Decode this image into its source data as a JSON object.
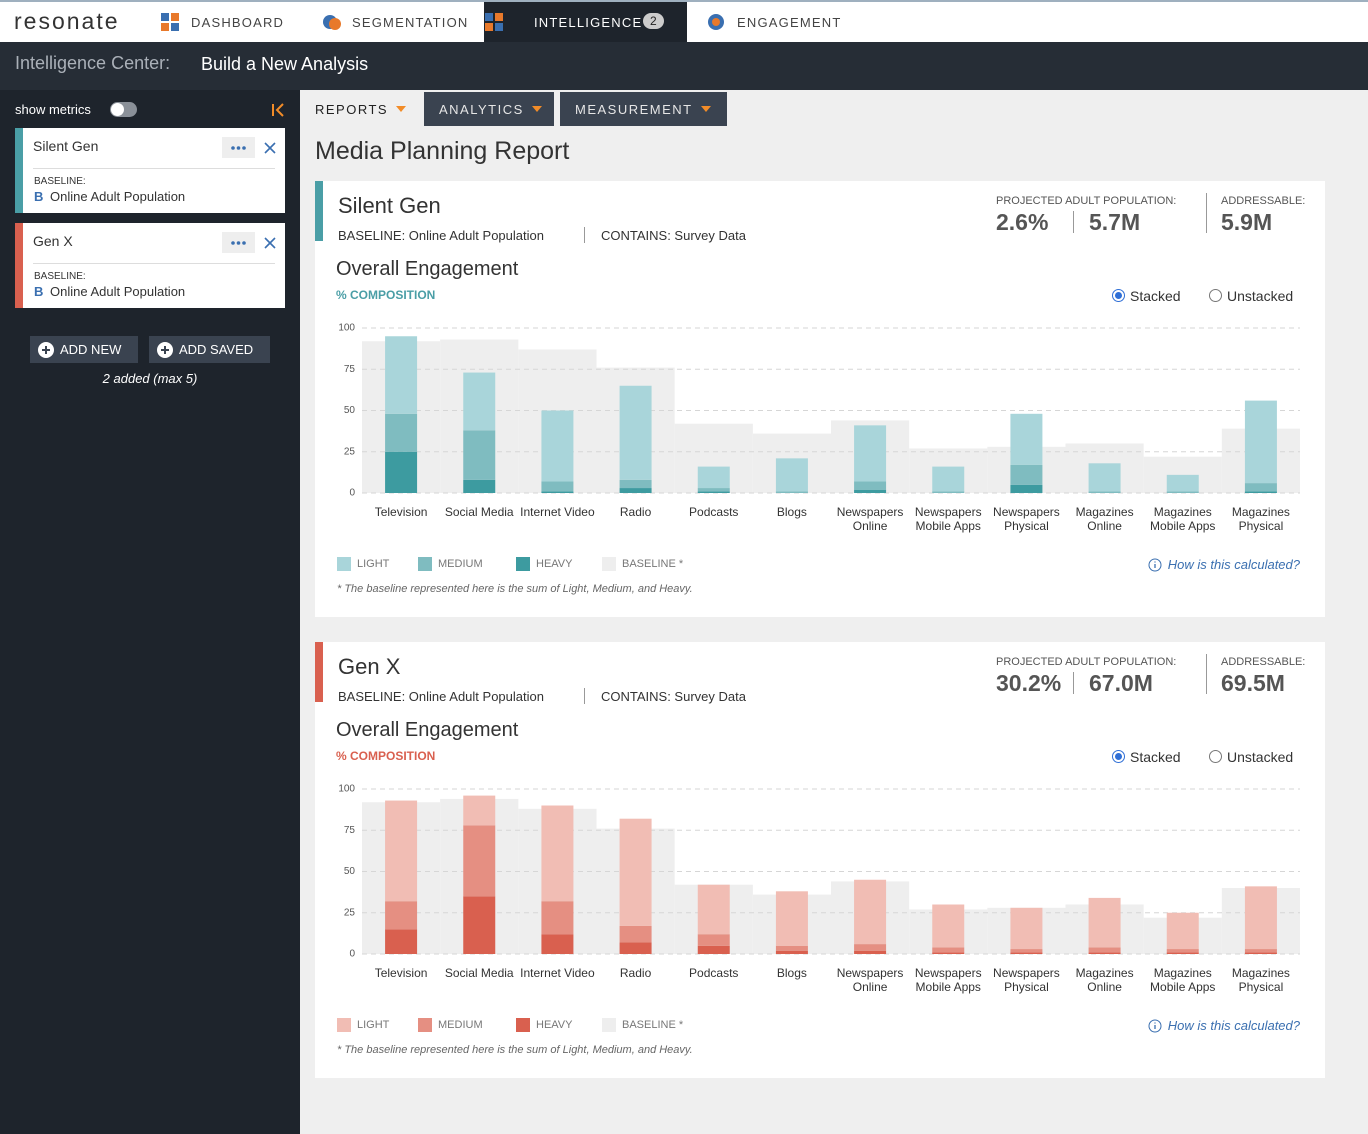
{
  "nav": {
    "logo": "resonate",
    "items": [
      "DASHBOARD",
      "SEGMENTATION",
      "INTELLIGENCE",
      "ENGAGEMENT"
    ],
    "active_index": 2,
    "badge": "2"
  },
  "header": {
    "label": "Intelligence Center:",
    "title": "Build a New Analysis"
  },
  "sidebar": {
    "toggle_label": "show metrics",
    "cards": [
      {
        "name": "Silent Gen",
        "baseline_label": "BASELINE:",
        "baseline_icon": "B",
        "baseline": "Online Adult Population",
        "color": "#4a9ea6"
      },
      {
        "name": "Gen X",
        "baseline_label": "BASELINE:",
        "baseline_icon": "B",
        "baseline": "Online Adult Population",
        "color": "#d9604f"
      }
    ],
    "buttons": [
      "ADD NEW",
      "ADD SAVED"
    ],
    "count_note": "2 added (max 5)"
  },
  "tabs": [
    "REPORTS",
    "ANALYTICS",
    "MEASUREMENT"
  ],
  "report_title": "Media Planning Report",
  "panels": [
    {
      "name": "Silent Gen",
      "baseline": "BASELINE: Online Adult Population",
      "contains": "CONTAINS: Survey Data",
      "pop_label": "PROJECTED ADULT POPULATION:",
      "pop_pct": "2.6%",
      "pop_count": "5.7M",
      "addr_label": "ADDRESSABLE:",
      "addr_value": "5.9M",
      "accent": "#4a9ea6"
    },
    {
      "name": "Gen X",
      "baseline": "BASELINE: Online Adult Population",
      "contains": "CONTAINS: Survey Data",
      "pop_label": "PROJECTED ADULT POPULATION:",
      "pop_pct": "30.2%",
      "pop_count": "67.0M",
      "addr_label": "ADDRESSABLE:",
      "addr_value": "69.5M",
      "accent": "#d9604f"
    }
  ],
  "chart_data": [
    {
      "type": "bar",
      "stacked": true,
      "title": "Overall Engagement",
      "subtitle": "% COMPOSITION",
      "view_options": [
        "Stacked",
        "Unstacked"
      ],
      "selected_view_index": 0,
      "categories": [
        "Television",
        "Social Media",
        "Internet Video",
        "Radio",
        "Podcasts",
        "Blogs",
        "Newspapers Online",
        "Newspapers Mobile Apps",
        "Newspapers Physical",
        "Magazines Online",
        "Magazines Mobile Apps",
        "Magazines Physical"
      ],
      "series": [
        {
          "name": "HEAVY",
          "color": "#3d9ba0",
          "values": [
            25,
            8,
            1,
            3,
            1,
            0,
            2,
            0,
            5,
            0,
            0,
            1
          ]
        },
        {
          "name": "MEDIUM",
          "color": "#7fbcc0",
          "values": [
            23,
            30,
            6,
            5,
            2,
            1,
            5,
            1,
            12,
            1,
            1,
            5
          ]
        },
        {
          "name": "LIGHT",
          "color": "#a9d5da",
          "values": [
            47,
            35,
            43,
            57,
            13,
            20,
            34,
            15,
            31,
            17,
            10,
            50
          ]
        }
      ],
      "baseline": {
        "name": "BASELINE *",
        "color": "#eeeeee",
        "values": [
          92,
          93,
          87,
          76,
          42,
          36,
          44,
          27,
          28,
          30,
          22,
          39
        ]
      },
      "legend_order": [
        2,
        1,
        0
      ],
      "ylim": [
        0,
        100
      ],
      "yticks": [
        0,
        25,
        50,
        75,
        100
      ],
      "grid": true,
      "help": "How is this calculated?",
      "footnote": "* The baseline represented here is the sum of Light, Medium, and Heavy."
    },
    {
      "type": "bar",
      "stacked": true,
      "title": "Overall Engagement",
      "subtitle": "% COMPOSITION",
      "view_options": [
        "Stacked",
        "Unstacked"
      ],
      "selected_view_index": 0,
      "categories": [
        "Television",
        "Social Media",
        "Internet Video",
        "Radio",
        "Podcasts",
        "Blogs",
        "Newspapers Online",
        "Newspapers Mobile Apps",
        "Newspapers Physical",
        "Magazines Online",
        "Magazines Mobile Apps",
        "Magazines Physical"
      ],
      "series": [
        {
          "name": "HEAVY",
          "color": "#d9604f",
          "values": [
            15,
            35,
            12,
            7,
            5,
            2,
            2,
            1,
            1,
            1,
            1,
            1
          ]
        },
        {
          "name": "MEDIUM",
          "color": "#e58f82",
          "values": [
            17,
            43,
            20,
            10,
            7,
            3,
            4,
            3,
            2,
            3,
            2,
            2
          ]
        },
        {
          "name": "LIGHT",
          "color": "#f1bdb4",
          "values": [
            61,
            18,
            58,
            65,
            30,
            33,
            39,
            26,
            25,
            30,
            22,
            38
          ]
        }
      ],
      "baseline": {
        "name": "BASELINE *",
        "color": "#eeeeee",
        "values": [
          92,
          94,
          88,
          76,
          42,
          36,
          44,
          27,
          28,
          30,
          22,
          40
        ]
      },
      "legend_order": [
        2,
        1,
        0
      ],
      "ylim": [
        0,
        100
      ],
      "yticks": [
        0,
        25,
        50,
        75,
        100
      ],
      "grid": true,
      "help": "How is this calculated?",
      "footnote": "* The baseline represented here is the sum of Light, Medium, and Heavy."
    }
  ]
}
